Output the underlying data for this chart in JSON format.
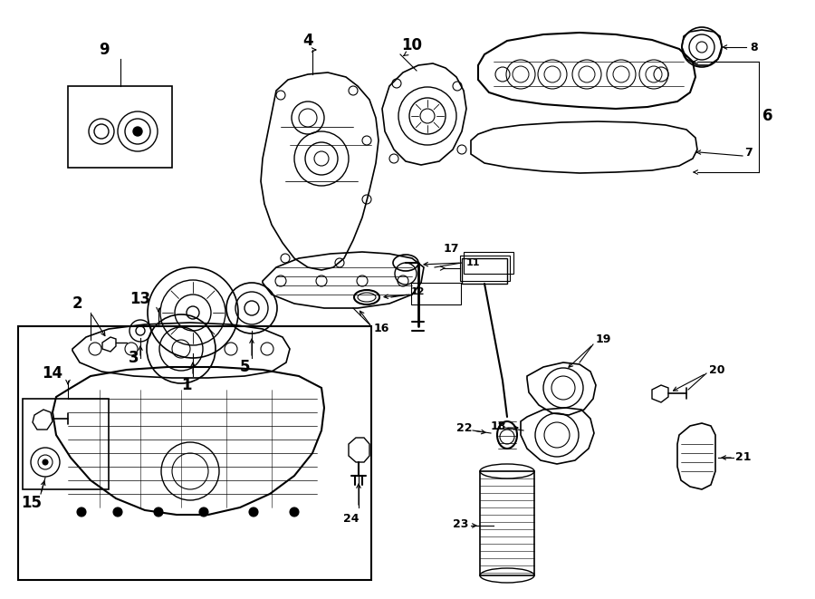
{
  "bg_color": "#ffffff",
  "line_color": "#000000",
  "fig_width": 9.0,
  "fig_height": 6.61,
  "dpi": 100,
  "label_fontsize": 12,
  "stroke_width": 1.0
}
